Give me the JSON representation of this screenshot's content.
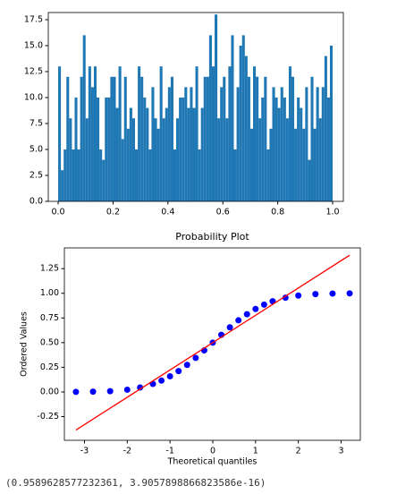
{
  "chart_data": [
    {
      "type": "histogram",
      "color": "#1f77b4",
      "bins": [
        0,
        0.01,
        0.02,
        0.03,
        0.04,
        0.05,
        0.06,
        0.07,
        0.08,
        0.09,
        0.1,
        0.11,
        0.12,
        0.13,
        0.14,
        0.15,
        0.16,
        0.17,
        0.18,
        0.19,
        0.2,
        0.21,
        0.22,
        0.23,
        0.24,
        0.25,
        0.26,
        0.27,
        0.28,
        0.29,
        0.3,
        0.31,
        0.32,
        0.33,
        0.34,
        0.35,
        0.36,
        0.37,
        0.38,
        0.39,
        0.4,
        0.41,
        0.42,
        0.43,
        0.44,
        0.45,
        0.46,
        0.47,
        0.48,
        0.49,
        0.5,
        0.51,
        0.52,
        0.53,
        0.54,
        0.55,
        0.56,
        0.57,
        0.58,
        0.59,
        0.6,
        0.61,
        0.62,
        0.63,
        0.64,
        0.65,
        0.66,
        0.67,
        0.68,
        0.69,
        0.7,
        0.71,
        0.72,
        0.73,
        0.74,
        0.75,
        0.76,
        0.77,
        0.78,
        0.79,
        0.8,
        0.81,
        0.82,
        0.83,
        0.84,
        0.85,
        0.86,
        0.87,
        0.88,
        0.89,
        0.9,
        0.91,
        0.92,
        0.93,
        0.94,
        0.95,
        0.96,
        0.97,
        0.98,
        0.99,
        1
      ],
      "values": [
        13,
        3,
        5,
        12,
        8,
        5,
        10,
        5,
        12,
        16,
        8,
        13,
        11,
        13,
        10,
        5,
        4,
        10,
        10,
        12,
        12,
        9,
        13,
        6,
        12,
        7,
        9,
        8,
        5,
        13,
        12,
        10,
        9,
        5,
        11,
        8,
        7,
        13,
        8,
        9,
        11,
        12,
        5,
        8,
        10,
        10,
        11,
        9,
        11,
        9,
        13,
        5,
        9,
        12,
        12,
        16,
        13,
        18,
        8,
        11,
        12,
        8,
        13,
        16,
        5,
        11,
        15,
        16,
        14,
        12,
        7,
        13,
        12,
        8,
        10,
        12,
        5,
        7,
        11,
        10,
        9,
        11,
        10,
        8,
        13,
        12,
        7,
        10,
        9,
        7,
        11,
        4,
        12,
        7,
        11,
        8,
        11,
        14,
        10,
        15
      ],
      "xlim": [
        -0.036,
        1.039
      ],
      "xticks": [
        {
          "value": 0,
          "label": "0.0"
        },
        0.2,
        0.4,
        0.6,
        0.8,
        {
          "value": 1,
          "label": "1.0"
        }
      ],
      "ylim": [
        0,
        18.19
      ],
      "yticks": [
        {
          "value": 0,
          "label": "0.0"
        },
        2.5,
        {
          "value": 5,
          "label": "5.0"
        },
        7.5,
        {
          "value": 10,
          "label": "10.0"
        },
        12.5,
        {
          "value": 15,
          "label": "15.0"
        },
        17.5
      ]
    },
    {
      "type": "scatter",
      "title": "Probability Plot",
      "x_label": "Theoretical quantiles",
      "y_label": "Ordered Values",
      "series": [
        {
          "style": "marker",
          "color": "#0000ff",
          "x": [
            -3.2,
            -2.8,
            -2.4,
            -2.0,
            -1.7,
            -1.4,
            -1.2,
            -1.0,
            -0.8,
            -0.6,
            -0.4,
            -0.2,
            0,
            0.2,
            0.4,
            0.6,
            0.8,
            1.0,
            1.2,
            1.4,
            1.7,
            2.0,
            2.4,
            2.8,
            3.2
          ],
          "values": [
            0.0007,
            0.003,
            0.008,
            0.023,
            0.045,
            0.081,
            0.115,
            0.159,
            0.212,
            0.274,
            0.345,
            0.421,
            0.5,
            0.579,
            0.655,
            0.726,
            0.788,
            0.841,
            0.885,
            0.919,
            0.955,
            0.977,
            0.992,
            0.997,
            0.999
          ]
        },
        {
          "style": "line",
          "color": "#ff0000",
          "x": [
            -3.2,
            3.2
          ],
          "values": [
            -0.386,
            1.386
          ]
        }
      ],
      "xlim": [
        -3.47,
        3.45
      ],
      "xticks": [
        -3,
        -2,
        -1,
        0,
        1,
        2,
        3
      ],
      "ylim": [
        -0.49,
        1.46
      ],
      "yticks": [
        -0.25,
        {
          "value": 0,
          "label": "0.00"
        },
        0.25,
        {
          "value": 0.5,
          "label": "0.50"
        },
        0.75,
        {
          "value": 1,
          "label": "1.00"
        },
        1.25
      ]
    }
  ],
  "output_text": "(0.9589628577232361, 3.9057898866823586e-16)"
}
